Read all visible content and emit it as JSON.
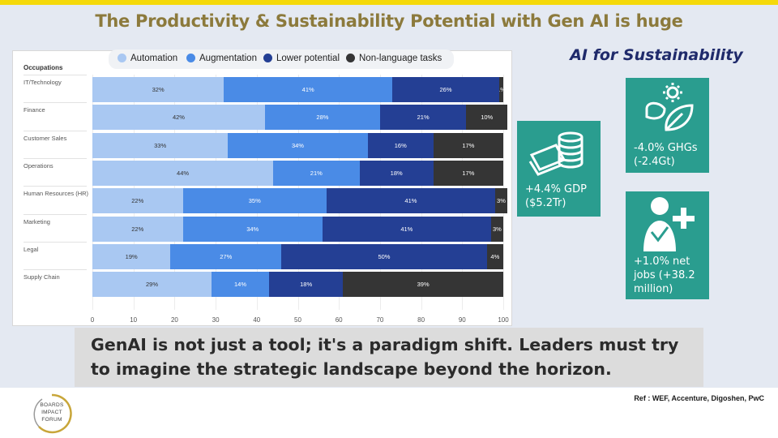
{
  "slide": {
    "title": "The Productivity & Sustainability Potential with Gen AI is huge",
    "section_title": "AI for Sustainability",
    "quote": "GenAI is not just a tool; it's a paradigm shift. Leaders must try to imagine the strategic landscape beyond the horizon.",
    "reference": "Ref : WEF, Accenture, Digoshen, PwC",
    "logo": {
      "line1": "BOARDS",
      "line2": "IMPACT",
      "line3": "FORUM"
    }
  },
  "colors": {
    "automation": "#a9c8f2",
    "augmentation": "#4a8be6",
    "lower_potential": "#243f94",
    "non_language": "#353535",
    "title_gold": "#8c7a3c",
    "card_teal": "#2a9d8f",
    "stripe_yellow": "#f5d90a"
  },
  "stats": [
    {
      "icon": "coins-cash-icon",
      "line1": "+4.4% GDP",
      "line2": "($5.2Tr)"
    },
    {
      "icon": "leaf-sun-icon",
      "line1": "-4.0% GHGs",
      "line2": "(-2.4Gt)"
    },
    {
      "icon": "person-plus-icon",
      "line1": "+1.0% net",
      "line2": "jobs (+38.2",
      "line3": "million)"
    }
  ],
  "chart_data": {
    "type": "bar",
    "orientation": "horizontal-stacked",
    "title": "",
    "category_header": "Occupations",
    "xlabel": "",
    "ylabel": "",
    "xlim": [
      0,
      100
    ],
    "x_ticks": [
      "0",
      "10",
      "20",
      "30",
      "40",
      "50",
      "60",
      "70",
      "80",
      "90",
      "100"
    ],
    "legend_position": "top",
    "categories": [
      "IT/Technology",
      "Finance",
      "Customer Sales",
      "Operations",
      "Human Resources (HR)",
      "Marketing",
      "Legal",
      "Supply Chain"
    ],
    "series": [
      {
        "name": "Automation",
        "color": "#a9c8f2",
        "values": [
          32,
          42,
          33,
          44,
          22,
          22,
          19,
          29
        ]
      },
      {
        "name": "Augmentation",
        "color": "#4a8be6",
        "values": [
          41,
          28,
          34,
          21,
          35,
          34,
          27,
          14
        ]
      },
      {
        "name": "Lower potential",
        "color": "#243f94",
        "values": [
          26,
          21,
          16,
          18,
          41,
          41,
          50,
          18
        ]
      },
      {
        "name": "Non-language tasks",
        "color": "#353535",
        "values": [
          1,
          10,
          17,
          17,
          3,
          3,
          4,
          39
        ]
      }
    ]
  }
}
